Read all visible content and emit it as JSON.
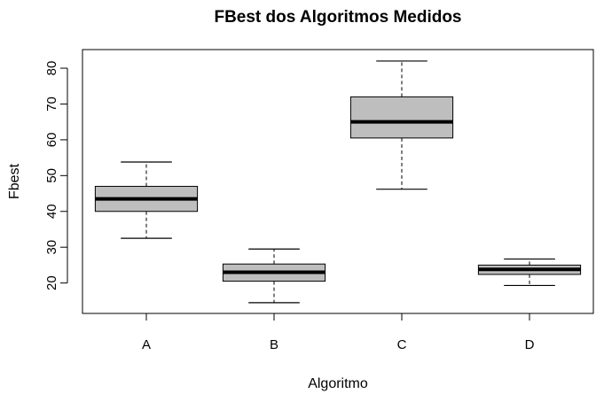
{
  "chart_data": {
    "type": "boxplot",
    "title": "FBest dos Algoritmos Medidos",
    "xlabel": "Algoritmo",
    "ylabel": "Fbest",
    "categories": [
      "A",
      "B",
      "C",
      "D"
    ],
    "yticks": [
      20,
      30,
      40,
      50,
      60,
      70,
      80
    ],
    "ylim": [
      11.5,
      85.2
    ],
    "boxes": [
      {
        "category": "A",
        "whisker_low": 32.5,
        "q1": 40.0,
        "median": 43.5,
        "q3": 47.0,
        "whisker_high": 53.8
      },
      {
        "category": "B",
        "whisker_low": 14.5,
        "q1": 20.5,
        "median": 23.0,
        "q3": 25.3,
        "whisker_high": 29.5
      },
      {
        "category": "C",
        "whisker_low": 46.2,
        "q1": 60.5,
        "median": 65.0,
        "q3": 72.0,
        "whisker_high": 82.0
      },
      {
        "category": "D",
        "whisker_low": 19.3,
        "q1": 22.4,
        "median": 23.8,
        "q3": 25.0,
        "whisker_high": 26.7
      }
    ],
    "box_fill": "#bebebe",
    "grid": false,
    "legend": "none"
  }
}
